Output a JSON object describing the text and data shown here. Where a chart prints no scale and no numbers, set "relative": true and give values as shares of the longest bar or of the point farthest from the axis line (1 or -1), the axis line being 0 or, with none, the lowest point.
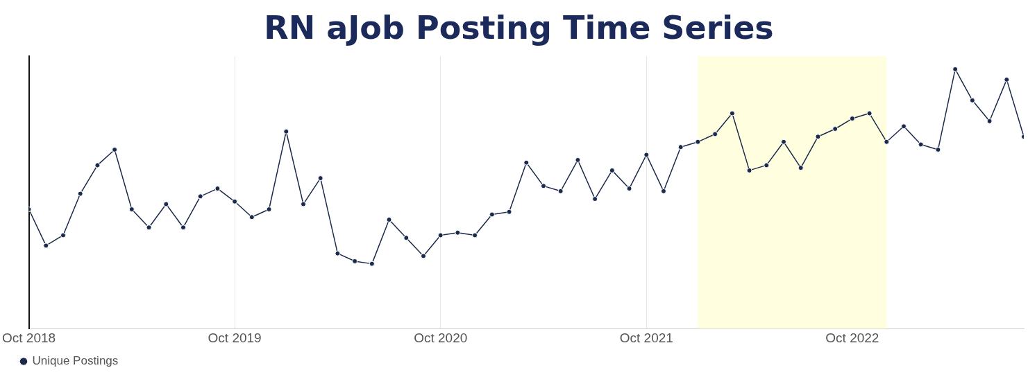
{
  "chart_data": {
    "type": "line",
    "title": "RN aJob Posting Time Series",
    "relative": true,
    "x": [
      "2018-10",
      "2018-11",
      "2018-12",
      "2019-01",
      "2019-02",
      "2019-03",
      "2019-04",
      "2019-05",
      "2019-06",
      "2019-07",
      "2019-08",
      "2019-09",
      "2019-10",
      "2019-11",
      "2019-12",
      "2020-01",
      "2020-02",
      "2020-03",
      "2020-04",
      "2020-05",
      "2020-06",
      "2020-07",
      "2020-08",
      "2020-09",
      "2020-10",
      "2020-11",
      "2020-12",
      "2021-01",
      "2021-02",
      "2021-03",
      "2021-04",
      "2021-05",
      "2021-06",
      "2021-07",
      "2021-08",
      "2021-09",
      "2021-10",
      "2021-11",
      "2021-12",
      "2022-01",
      "2022-02",
      "2022-03",
      "2022-04",
      "2022-05",
      "2022-06",
      "2022-07",
      "2022-08",
      "2022-09",
      "2022-10",
      "2022-11",
      "2022-12",
      "2023-01",
      "2023-02",
      "2023-03",
      "2023-04",
      "2023-05",
      "2023-06",
      "2023-07",
      "2023-08"
    ],
    "series": [
      {
        "name": "Unique Postings",
        "color": "#1b2a4a",
        "values": [
          0.46,
          0.32,
          0.36,
          0.52,
          0.63,
          0.69,
          0.46,
          0.39,
          0.48,
          0.39,
          0.51,
          0.54,
          0.49,
          0.43,
          0.46,
          0.76,
          0.48,
          0.58,
          0.29,
          0.26,
          0.25,
          0.42,
          0.35,
          0.28,
          0.36,
          0.37,
          0.36,
          0.44,
          0.45,
          0.64,
          0.55,
          0.53,
          0.65,
          0.5,
          0.61,
          0.54,
          0.67,
          0.53,
          0.7,
          0.72,
          0.75,
          0.83,
          0.61,
          0.63,
          0.72,
          0.62,
          0.74,
          0.77,
          0.81,
          0.83,
          0.72,
          0.78,
          0.71,
          0.69,
          1,
          0.88,
          0.8,
          0.96,
          0.74
        ]
      }
    ],
    "xlim": [
      "2018-10",
      "2023-08"
    ],
    "xticks": [
      {
        "value": "2018-10",
        "label": "Oct 2018"
      },
      {
        "value": "2019-10",
        "label": "Oct 2019"
      },
      {
        "value": "2020-10",
        "label": "Oct 2020"
      },
      {
        "value": "2021-10",
        "label": "Oct 2021"
      },
      {
        "value": "2022-10",
        "label": "Oct 2022"
      }
    ],
    "bands": [
      {
        "axis": "x",
        "from": "2022-01",
        "to": "2022-12",
        "color": "#ffffe0"
      }
    ],
    "grid": "x",
    "legend": "bottom left",
    "marker": "circle",
    "line_style": "solid"
  }
}
